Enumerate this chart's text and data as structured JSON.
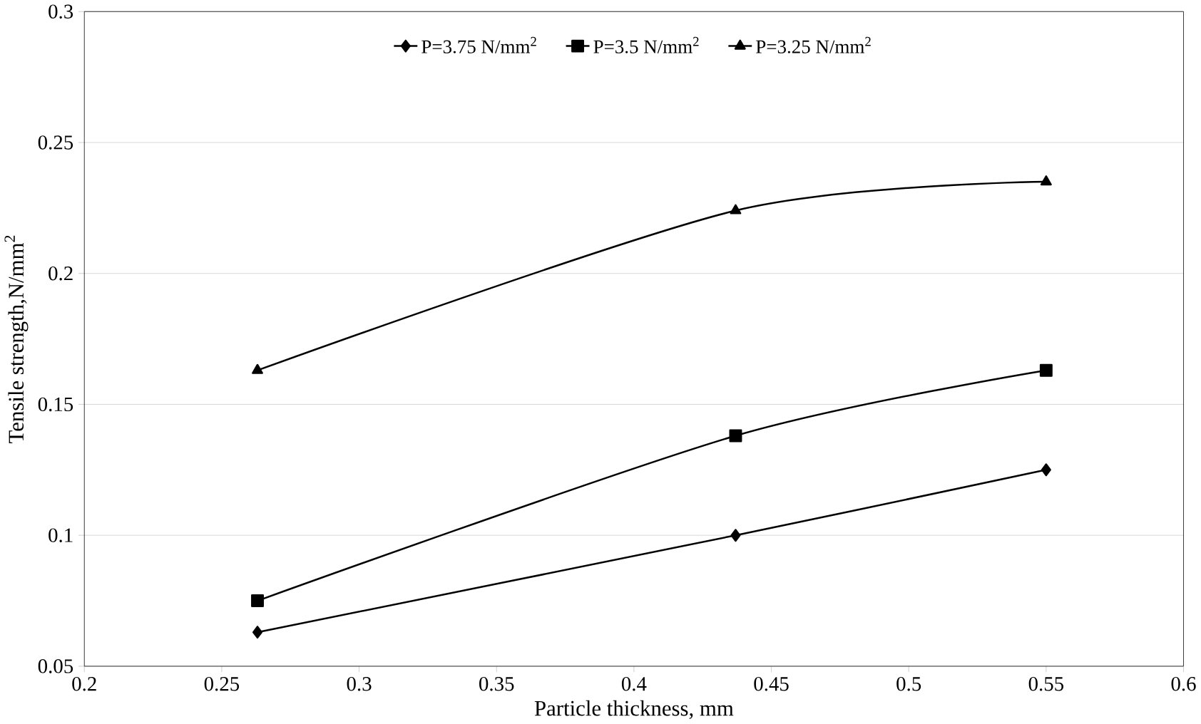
{
  "chart_data": {
    "type": "line",
    "xlabel": "Particle thickness, mm",
    "ylabel": "Tensile strength,N/mm$^{2}$",
    "x": [
      0.263,
      0.437,
      0.55
    ],
    "series": [
      {
        "name": "P=3.75 N/mm$^{2}$",
        "color": "#000000",
        "marker": "diamond",
        "values": [
          0.063,
          0.1,
          0.125
        ]
      },
      {
        "name": "P=3.5 N/mm$^{2}$",
        "color": "#000000",
        "marker": "square",
        "values": [
          0.075,
          0.138,
          0.163
        ]
      },
      {
        "name": "P=3.25 N/mm$^{2}$",
        "color": "#000000",
        "marker": "triangle",
        "values": [
          0.163,
          0.224,
          0.235
        ]
      }
    ],
    "xlim": [
      0.2,
      0.6
    ],
    "xticks": [
      0.2,
      0.25,
      0.3,
      0.35,
      0.4,
      0.45,
      0.5,
      0.55,
      0.6
    ],
    "ylim": [
      0.05,
      0.3
    ],
    "yticks": [
      0.05,
      0.1,
      0.15,
      0.2,
      0.25,
      0.3
    ],
    "grid": "y",
    "legend": "top",
    "line_style": "solid"
  }
}
